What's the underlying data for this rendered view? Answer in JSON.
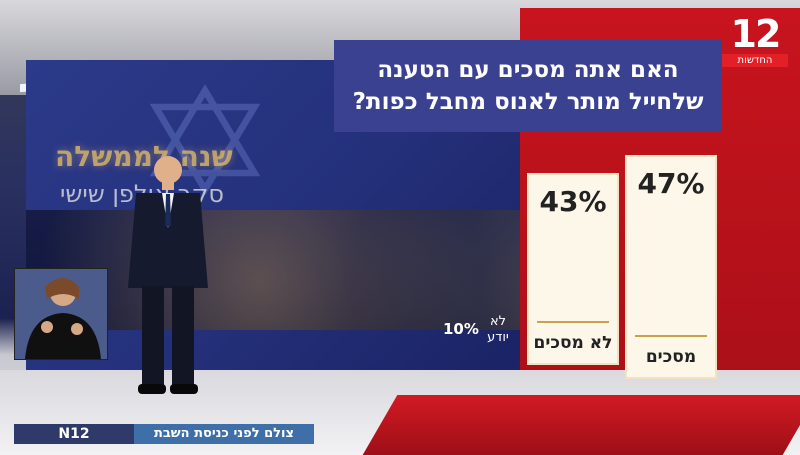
{
  "question": {
    "line1": "האם אתה מסכים עם הטענה",
    "line2": "שלחייל מותר לאנוס מחבל כפות?"
  },
  "logo": {
    "number": "12",
    "subtitle": "החדשות"
  },
  "results": [
    {
      "label": "מסכים",
      "percent": "47%",
      "value": 47
    },
    {
      "label": "לא מסכים",
      "percent": "43%",
      "value": 43
    }
  ],
  "dont_know": {
    "label": "לא יודע",
    "percent": "10%",
    "value": 10
  },
  "background": {
    "title": "שנה לממשלה",
    "subtitle": "סקר אולפן שישי"
  },
  "ticker": {
    "brand": "N12",
    "text": "צולם לפני כניסת השבת"
  },
  "colors": {
    "red": "#c8141e",
    "navy": "#3a4190",
    "bar": "#fdf7ea"
  }
}
